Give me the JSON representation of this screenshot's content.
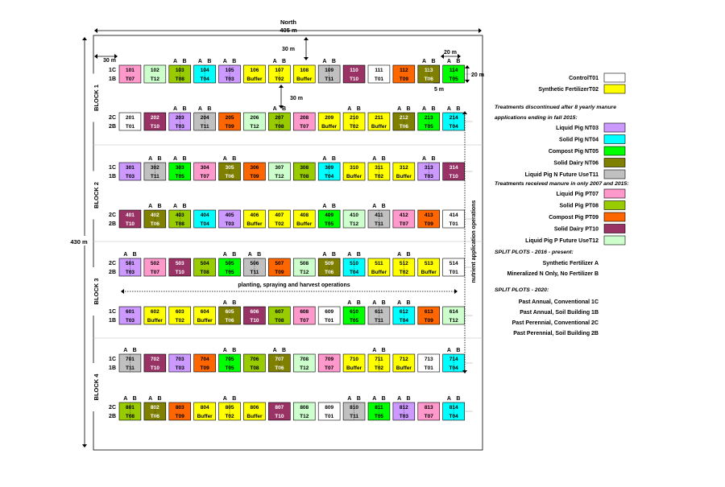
{
  "colors": {
    "T01": "#ffffff",
    "T02": "#ffff00",
    "T03": "#cc99ff",
    "T04": "#00ffff",
    "T05": "#00ff00",
    "T06": "#808000",
    "T07": "#ff99cc",
    "T08": "#99cc00",
    "T09": "#ff6600",
    "T10": "#993366",
    "T11": "#c0c0c0",
    "T12": "#ccffcc",
    "Buffer": "#ffff00"
  },
  "text_colors": {
    "T10": "#ffffff",
    "T06": "#ffffff"
  },
  "dimensions": {
    "north": "North",
    "width_label": "405 m",
    "height_label": "430 m",
    "gap_top": "30 m",
    "gap_left": "30 m",
    "gap_block": "30 m",
    "plot_w": "20 m",
    "plot_h": "20 m",
    "sub_gap": "5 m"
  },
  "ab": {
    "a": "A",
    "b": "B"
  },
  "annotations": {
    "nutrient": "nutrient application operations",
    "planting": "planting, spraying and harvest operations"
  },
  "blocks": [
    {
      "label": "BLOCK 1",
      "rows": [
        {
          "top": "1C",
          "bottom": "1B",
          "cells": [
            {
              "n": "101",
              "t": "T07",
              "s": false
            },
            {
              "n": "102",
              "t": "T12",
              "s": false
            },
            {
              "n": "103",
              "t": "T08",
              "s": true
            },
            {
              "n": "104",
              "t": "T04",
              "s": true
            },
            {
              "n": "105",
              "t": "T03",
              "s": true
            },
            {
              "n": "106",
              "t": "Buffer",
              "s": false
            },
            {
              "n": "107",
              "t": "T02",
              "s": true
            },
            {
              "n": "108",
              "t": "Buffer",
              "s": false
            },
            {
              "n": "109",
              "t": "T11",
              "s": true
            },
            {
              "n": "110",
              "t": "T10",
              "s": false
            },
            {
              "n": "111",
              "t": "T01",
              "s": false
            },
            {
              "n": "112",
              "t": "T09",
              "s": false
            },
            {
              "n": "113",
              "t": "T06",
              "s": true
            },
            {
              "n": "114",
              "t": "T05",
              "s": true
            }
          ]
        },
        {
          "top": "2C",
          "bottom": "2B",
          "cells": [
            {
              "n": "201",
              "t": "T01",
              "s": false
            },
            {
              "n": "202",
              "t": "T10",
              "s": false
            },
            {
              "n": "203",
              "t": "T03",
              "s": true
            },
            {
              "n": "204",
              "t": "T11",
              "s": true
            },
            {
              "n": "205",
              "t": "T09",
              "s": false
            },
            {
              "n": "206",
              "t": "T12",
              "s": false
            },
            {
              "n": "207",
              "t": "T08",
              "s": true
            },
            {
              "n": "208",
              "t": "T07",
              "s": false
            },
            {
              "n": "209",
              "t": "Buffer",
              "s": false
            },
            {
              "n": "210",
              "t": "T02",
              "s": true
            },
            {
              "n": "211",
              "t": "Buffer",
              "s": false
            },
            {
              "n": "212",
              "t": "T06",
              "s": true
            },
            {
              "n": "213",
              "t": "T05",
              "s": true
            },
            {
              "n": "214",
              "t": "T04",
              "s": true
            }
          ]
        }
      ]
    },
    {
      "label": "BLOCK 2",
      "rows": [
        {
          "top": "1C",
          "bottom": "1B",
          "cells": [
            {
              "n": "301",
              "t": "T03",
              "s": false
            },
            {
              "n": "302",
              "t": "T11",
              "s": true
            },
            {
              "n": "303",
              "t": "T05",
              "s": true
            },
            {
              "n": "304",
              "t": "T07",
              "s": false
            },
            {
              "n": "305",
              "t": "T06",
              "s": true
            },
            {
              "n": "306",
              "t": "T09",
              "s": false
            },
            {
              "n": "307",
              "t": "T12",
              "s": false
            },
            {
              "n": "308",
              "t": "T08",
              "s": false
            },
            {
              "n": "309",
              "t": "T04",
              "s": true
            },
            {
              "n": "310",
              "t": "Buffer",
              "s": false
            },
            {
              "n": "311",
              "t": "T02",
              "s": true
            },
            {
              "n": "312",
              "t": "Buffer",
              "s": false
            },
            {
              "n": "313",
              "t": "T03",
              "s": true
            },
            {
              "n": "314",
              "t": "T10",
              "s": false
            }
          ]
        },
        {
          "top": "2C",
          "bottom": "2B",
          "cells": [
            {
              "n": "401",
              "t": "T10",
              "s": false
            },
            {
              "n": "402",
              "t": "T06",
              "s": true
            },
            {
              "n": "403",
              "t": "T08",
              "s": true
            },
            {
              "n": "404",
              "t": "T04",
              "s": false
            },
            {
              "n": "405",
              "t": "T03",
              "s": false
            },
            {
              "n": "406",
              "t": "Buffer",
              "s": false
            },
            {
              "n": "407",
              "t": "T02",
              "s": false
            },
            {
              "n": "408",
              "t": "Buffer",
              "s": false
            },
            {
              "n": "409",
              "t": "T05",
              "s": true
            },
            {
              "n": "410",
              "t": "T12",
              "s": false
            },
            {
              "n": "411",
              "t": "T11",
              "s": true
            },
            {
              "n": "412",
              "t": "T07",
              "s": false
            },
            {
              "n": "413",
              "t": "T09",
              "s": false
            },
            {
              "n": "414",
              "t": "T01",
              "s": false
            }
          ]
        }
      ]
    },
    {
      "label": "BLOCK 3",
      "rows": [
        {
          "top": "2C",
          "bottom": "2B",
          "cells": [
            {
              "n": "501",
              "t": "T03",
              "s": true
            },
            {
              "n": "502",
              "t": "T07",
              "s": false
            },
            {
              "n": "503",
              "t": "T10",
              "s": false
            },
            {
              "n": "504",
              "t": "T08",
              "s": false
            },
            {
              "n": "505",
              "t": "T05",
              "s": true
            },
            {
              "n": "506",
              "t": "T11",
              "s": true
            },
            {
              "n": "507",
              "t": "T09",
              "s": false
            },
            {
              "n": "508",
              "t": "T12",
              "s": false
            },
            {
              "n": "509",
              "t": "T06",
              "s": true
            },
            {
              "n": "510",
              "t": "T04",
              "s": true
            },
            {
              "n": "511",
              "t": "Buffer",
              "s": false
            },
            {
              "n": "512",
              "t": "T02",
              "s": true
            },
            {
              "n": "513",
              "t": "Buffer",
              "s": false
            },
            {
              "n": "514",
              "t": "T01",
              "s": false
            }
          ]
        },
        {
          "top": "1C",
          "bottom": "1B",
          "cells": [
            {
              "n": "601",
              "t": "T03",
              "s": false
            },
            {
              "n": "602",
              "t": "Buffer",
              "s": false
            },
            {
              "n": "603",
              "t": "T02",
              "s": false
            },
            {
              "n": "604",
              "t": "Buffer",
              "s": false
            },
            {
              "n": "605",
              "t": "T06",
              "s": true
            },
            {
              "n": "606",
              "t": "T10",
              "s": false
            },
            {
              "n": "607",
              "t": "T08",
              "s": false
            },
            {
              "n": "608",
              "t": "T07",
              "s": false
            },
            {
              "n": "609",
              "t": "T01",
              "s": false
            },
            {
              "n": "610",
              "t": "T05",
              "s": true
            },
            {
              "n": "611",
              "t": "T11",
              "s": true
            },
            {
              "n": "612",
              "t": "T04",
              "s": true
            },
            {
              "n": "613",
              "t": "T09",
              "s": false
            },
            {
              "n": "614",
              "t": "T12",
              "s": false
            }
          ]
        }
      ]
    },
    {
      "label": "BLOCK 4",
      "rows": [
        {
          "top": "1C",
          "bottom": "1B",
          "cells": [
            {
              "n": "701",
              "t": "T11",
              "s": true
            },
            {
              "n": "702",
              "t": "T10",
              "s": false
            },
            {
              "n": "703",
              "t": "T03",
              "s": false
            },
            {
              "n": "704",
              "t": "T09",
              "s": false
            },
            {
              "n": "705",
              "t": "T05",
              "s": true
            },
            {
              "n": "706",
              "t": "T08",
              "s": false
            },
            {
              "n": "707",
              "t": "T06",
              "s": true
            },
            {
              "n": "708",
              "t": "T12",
              "s": false
            },
            {
              "n": "709",
              "t": "T07",
              "s": false
            },
            {
              "n": "710",
              "t": "Buffer",
              "s": false
            },
            {
              "n": "711",
              "t": "T02",
              "s": true
            },
            {
              "n": "712",
              "t": "Buffer",
              "s": false
            },
            {
              "n": "713",
              "t": "T01",
              "s": false
            },
            {
              "n": "714",
              "t": "T04",
              "s": true
            }
          ]
        },
        {
          "top": "2C",
          "bottom": "2B",
          "cells": [
            {
              "n": "801",
              "t": "T08",
              "s": true
            },
            {
              "n": "802",
              "t": "T06",
              "s": true
            },
            {
              "n": "803",
              "t": "T09",
              "s": false
            },
            {
              "n": "804",
              "t": "Buffer",
              "s": false
            },
            {
              "n": "805",
              "t": "T02",
              "s": true
            },
            {
              "n": "806",
              "t": "Buffer",
              "s": false
            },
            {
              "n": "807",
              "t": "T10",
              "s": false
            },
            {
              "n": "808",
              "t": "T12",
              "s": false
            },
            {
              "n": "809",
              "t": "T01",
              "s": false
            },
            {
              "n": "810",
              "t": "T11",
              "s": true
            },
            {
              "n": "811",
              "t": "T05",
              "s": true
            },
            {
              "n": "812",
              "t": "T03",
              "s": true
            },
            {
              "n": "813",
              "t": "T07",
              "s": false
            },
            {
              "n": "814",
              "t": "T04",
              "s": true
            }
          ]
        }
      ]
    }
  ],
  "legend": {
    "top_items": [
      {
        "label": "Control",
        "code": "T01"
      },
      {
        "label": "Synthetic Fertilizer",
        "code": "T02"
      }
    ],
    "manure_heading": [
      "Treatments discontinued after 8 yearly manure",
      "applications ending in fall 2015:"
    ],
    "manure_items": [
      {
        "label": "Liquid Pig N",
        "code": "T03"
      },
      {
        "label": "Solid Pig N",
        "code": "T04"
      },
      {
        "label": "Compost Pig N",
        "code": "T05"
      },
      {
        "label": "Solid Dairy N",
        "code": "T06"
      },
      {
        "label": "Liquid Pig N Future Use",
        "code": "T11"
      }
    ],
    "p_heading": "Treatments received manure in only 2007 and 2015:",
    "p_items": [
      {
        "label": "Liquid Pig P",
        "code": "T07"
      },
      {
        "label": "Solid Pig P",
        "code": "T08"
      },
      {
        "label": "Compost Pig P",
        "code": "T09"
      },
      {
        "label": "Solid Dairy P",
        "code": "T10"
      },
      {
        "label": "Liquid Pig P Future Use",
        "code": "T12"
      }
    ],
    "split2016_heading": "SPLIT PLOTS - 2016 - present:",
    "split2016_items": [
      "Synthetic Fertilizer A",
      "Mineralized N Only, No Fertilizer B"
    ],
    "split2020_heading": "SPLIT PLOTS - 2020:",
    "split2020_items": [
      "Past Annual, Conventional 1C",
      "Past Annual, Soil Building 1B",
      "Past Perennial, Conventional 2C",
      "Past Perennial, Soil Building 2B"
    ]
  }
}
